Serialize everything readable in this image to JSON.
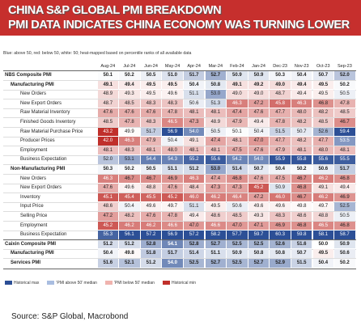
{
  "header": {
    "title": [
      "CHINA S&P GLOBAL PMI BREAKDOWN",
      "PMI DATA INDICATES CHINA ECONOMY WAS TURNING LOWER"
    ],
    "subtitle": "Blue: above 50, red: below 50, white: 50; heat-mapped based on percentile ranks of all available data"
  },
  "table": {
    "columns": [
      "Aug-24",
      "Jul-24",
      "Jun-24",
      "May-24",
      "Apr-24",
      "Mar-24",
      "Feb-24",
      "Jan-24",
      "Dec-23",
      "Nov-23",
      "Oct-23",
      "Sep-23"
    ],
    "groups": [
      {
        "label": "NBS Composite PMI",
        "values": [
          "50.1",
          "50.2",
          "50.5",
          "51.0",
          "51.7",
          "52.7",
          "50.9",
          "50.9",
          "50.3",
          "50.4",
          "50.7",
          "52.0"
        ],
        "rows": [
          {
            "label": "Manufacturing PMI",
            "values": [
              "49.1",
              "49.4",
              "49.5",
              "49.5",
              "50.4",
              "50.8",
              "49.1",
              "49.2",
              "49.0",
              "49.4",
              "49.5",
              "50.2"
            ],
            "rows": [
              {
                "label": "New Orders",
                "values": [
                  "48.9",
                  "49.3",
                  "49.5",
                  "49.6",
                  "51.1",
                  "53.0",
                  "49.0",
                  "49.0",
                  "48.7",
                  "49.4",
                  "49.5",
                  "50.5"
                ]
              },
              {
                "label": "New Export Orders",
                "values": [
                  "48.7",
                  "48.5",
                  "48.3",
                  "48.3",
                  "50.6",
                  "51.3",
                  "46.3",
                  "47.2",
                  "45.8",
                  "46.3",
                  "46.8",
                  "47.8"
                ]
              },
              {
                "label": "Raw Material Inventory",
                "values": [
                  "47.6",
                  "47.6",
                  "47.6",
                  "47.8",
                  "48.1",
                  "48.1",
                  "47.4",
                  "47.6",
                  "47.7",
                  "48.0",
                  "48.2",
                  "48.5"
                ]
              },
              {
                "label": "Finished Goods Inventory",
                "values": [
                  "48.5",
                  "47.8",
                  "48.3",
                  "46.5",
                  "47.3",
                  "48.9",
                  "47.9",
                  "49.4",
                  "47.8",
                  "48.2",
                  "48.5",
                  "46.7"
                ]
              },
              {
                "label": "Raw Material Purchase Price",
                "values": [
                  "43.2",
                  "49.9",
                  "51.7",
                  "56.9",
                  "54.0",
                  "50.5",
                  "50.1",
                  "50.4",
                  "51.5",
                  "50.7",
                  "52.6",
                  "59.4"
                ]
              },
              {
                "label": "Producer Prices",
                "values": [
                  "42.0",
                  "46.3",
                  "47.9",
                  "50.4",
                  "49.1",
                  "47.4",
                  "48.1",
                  "47.0",
                  "47.7",
                  "48.2",
                  "47.7",
                  "53.5"
                ]
              },
              {
                "label": "Employment",
                "values": [
                  "48.1",
                  "48.3",
                  "48.1",
                  "48.0",
                  "48.1",
                  "48.1",
                  "47.5",
                  "47.6",
                  "47.9",
                  "48.1",
                  "48.0",
                  "48.1"
                ]
              },
              {
                "label": "Business Expectation",
                "values": [
                  "52.0",
                  "53.1",
                  "54.4",
                  "54.3",
                  "55.2",
                  "55.6",
                  "54.2",
                  "54.0",
                  "55.9",
                  "55.8",
                  "55.6",
                  "55.5"
                ]
              }
            ]
          },
          {
            "label": "Non-Manufacturing PMI",
            "values": [
              "50.3",
              "50.2",
              "50.5",
              "51.1",
              "51.2",
              "53.0",
              "51.4",
              "50.7",
              "50.4",
              "50.2",
              "50.6",
              "51.7"
            ],
            "rows": [
              {
                "label": "New Orders",
                "values": [
                  "46.3",
                  "46.7",
                  "46.7",
                  "46.9",
                  "46.3",
                  "47.4",
                  "46.8",
                  "47.6",
                  "47.5",
                  "46.7",
                  "46.2",
                  "46.8"
                ]
              },
              {
                "label": "New Export Orders",
                "values": [
                  "47.6",
                  "49.6",
                  "48.8",
                  "47.6",
                  "48.4",
                  "47.3",
                  "47.3",
                  "45.2",
                  "50.9",
                  "46.8",
                  "49.1",
                  "49.4"
                ]
              },
              {
                "label": "Inventory",
                "values": [
                  "45.1",
                  "45.4",
                  "45.5",
                  "45.2",
                  "46.0",
                  "46.2",
                  "46.4",
                  "47.2",
                  "46.0",
                  "46.7",
                  "46.2",
                  "46.9"
                ]
              },
              {
                "label": "Input Price",
                "values": [
                  "48.6",
                  "50.4",
                  "49.6",
                  "49.7",
                  "51.1",
                  "49.5",
                  "50.6",
                  "49.6",
                  "49.6",
                  "49.8",
                  "49.7",
                  "52.5"
                ]
              },
              {
                "label": "Selling Price",
                "values": [
                  "47.2",
                  "48.2",
                  "47.6",
                  "47.8",
                  "49.4",
                  "48.6",
                  "48.5",
                  "49.3",
                  "48.3",
                  "48.6",
                  "48.8",
                  "50.5"
                ]
              },
              {
                "label": "Employment",
                "values": [
                  "45.2",
                  "46.2",
                  "46.2",
                  "46.6",
                  "47.0",
                  "46.6",
                  "47.0",
                  "47.1",
                  "46.9",
                  "46.8",
                  "46.5",
                  "46.8"
                ]
              },
              {
                "label": "Business Expectation",
                "values": [
                  "55.3",
                  "56.1",
                  "57.2",
                  "56.9",
                  "57.2",
                  "58.2",
                  "57.7",
                  "59.7",
                  "60.3",
                  "59.8",
                  "58.1",
                  "58.7"
                ]
              }
            ]
          }
        ]
      },
      {
        "label": "Caixin Composite PMI",
        "values": [
          "51.2",
          "51.2",
          "52.8",
          "54.1",
          "52.8",
          "52.7",
          "52.5",
          "52.5",
          "52.6",
          "51.6",
          "50.0",
          "50.9"
        ],
        "rows": [
          {
            "label": "Manufacturing PMI",
            "values": [
              "50.4",
              "49.8",
              "51.8",
              "51.7",
              "51.4",
              "51.1",
              "50.9",
              "50.8",
              "50.8",
              "50.7",
              "49.5",
              "50.6"
            ]
          },
          {
            "label": "Services PMI",
            "values": [
              "51.6",
              "52.1",
              "51.2",
              "54.0",
              "52.5",
              "52.7",
              "52.5",
              "52.7",
              "52.9",
              "51.5",
              "50.4",
              "50.2"
            ]
          }
        ]
      }
    ]
  },
  "legend": [
    "Historical max",
    "'PMI above 50' median",
    "'PMI below 50' median",
    "Historical min"
  ],
  "source": "Source: S&P Global, Macrobond"
}
